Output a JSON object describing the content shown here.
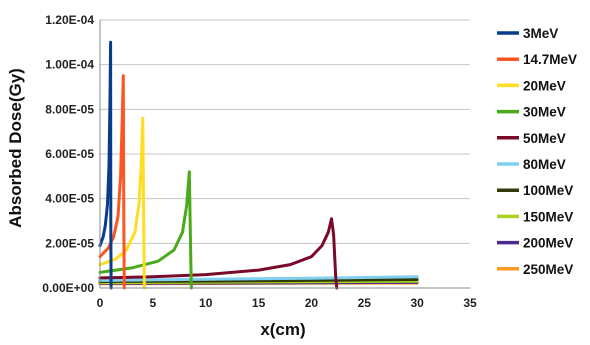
{
  "chart_data": {
    "type": "line",
    "title": "",
    "xlabel": "x(cm)",
    "ylabel": "Absorbed Dose(Gy)",
    "xlim": [
      0,
      35
    ],
    "ylim": [
      0,
      0.00012
    ],
    "xticks": [
      "0",
      "5",
      "10",
      "15",
      "20",
      "25",
      "30",
      "35"
    ],
    "yticks": [
      "0.00E+00",
      "2.00E-05",
      "4.00E-05",
      "6.00E-05",
      "8.00E-05",
      "1.00E-04",
      "1.20E-04"
    ],
    "grid": "horizontal",
    "legend_position": "right",
    "series": [
      {
        "name": "3MeV",
        "color": "#0a3c8c",
        "x": [
          0,
          0.3,
          0.5,
          0.7,
          0.85,
          0.95,
          1.0,
          1.02,
          1.05
        ],
        "y": [
          1.9e-05,
          2.3e-05,
          2.8e-05,
          3.7e-05,
          5.5e-05,
          8.5e-05,
          0.00011,
          3e-05,
          0
        ]
      },
      {
        "name": "14.7MeV",
        "color": "#ff5522",
        "x": [
          0,
          0.8,
          1.3,
          1.7,
          1.95,
          2.1,
          2.2,
          2.25,
          2.3
        ],
        "y": [
          1.4e-05,
          1.8e-05,
          2.3e-05,
          3.2e-05,
          5e-05,
          7.5e-05,
          9.5e-05,
          3e-05,
          0
        ]
      },
      {
        "name": "20MeV",
        "color": "#ffdd22",
        "x": [
          0,
          1.5,
          2.5,
          3.3,
          3.7,
          3.9,
          4.05,
          4.15,
          4.2
        ],
        "y": [
          1.05e-05,
          1.3e-05,
          1.7e-05,
          2.5e-05,
          3.8e-05,
          5.5e-05,
          7.6e-05,
          2e-05,
          0
        ]
      },
      {
        "name": "30MeV",
        "color": "#4aaa1a",
        "x": [
          0,
          3,
          5.5,
          7,
          7.8,
          8.2,
          8.45,
          8.6,
          8.65
        ],
        "y": [
          7e-06,
          9e-06,
          1.2e-05,
          1.7e-05,
          2.5e-05,
          3.7e-05,
          5.2e-05,
          1e-05,
          0
        ]
      },
      {
        "name": "50MeV",
        "color": "#7a0a2a",
        "x": [
          0,
          5,
          10,
          15,
          18,
          20,
          21,
          21.6,
          21.9,
          22.1,
          22.3,
          22.4
        ],
        "y": [
          4.5e-06,
          5e-06,
          6e-06,
          8e-06,
          1.05e-05,
          1.4e-05,
          1.9e-05,
          2.5e-05,
          3.1e-05,
          2.4e-05,
          5e-06,
          0
        ]
      },
      {
        "name": "80MeV",
        "color": "#7fcff0",
        "x": [
          0,
          10,
          20,
          30
        ],
        "y": [
          3.4e-06,
          3.9e-06,
          4.4e-06,
          5e-06
        ]
      },
      {
        "name": "100MeV",
        "color": "#2f3a0a",
        "x": [
          0,
          10,
          20,
          30
        ],
        "y": [
          2.9e-06,
          3.1e-06,
          3.4e-06,
          3.8e-06
        ]
      },
      {
        "name": "150MeV",
        "color": "#aad21e",
        "x": [
          0,
          10,
          20,
          30
        ],
        "y": [
          2.4e-06,
          2.6e-06,
          2.8e-06,
          3e-06
        ]
      },
      {
        "name": "200MeV",
        "color": "#4a2a8a",
        "x": [
          0,
          10,
          20,
          30
        ],
        "y": [
          2.1e-06,
          2.2e-06,
          2.35e-06,
          2.5e-06
        ]
      },
      {
        "name": "250MeV",
        "color": "#ff9922",
        "x": [
          0,
          10,
          20,
          30
        ],
        "y": [
          1.9e-06,
          2e-06,
          2.1e-06,
          2.2e-06
        ]
      }
    ]
  }
}
